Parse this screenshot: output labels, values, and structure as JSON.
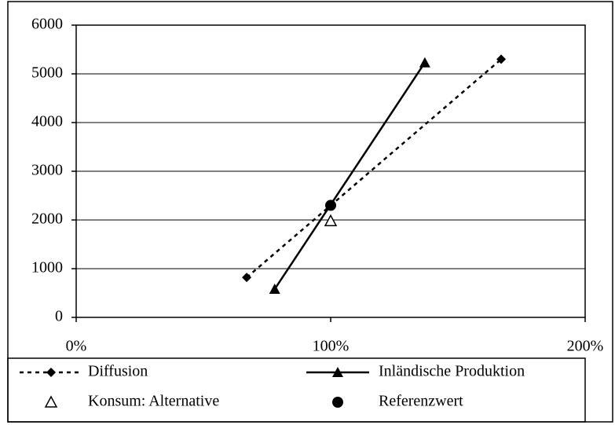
{
  "chart_data": {
    "type": "scatter",
    "xlim": [
      0,
      200
    ],
    "xticks": [
      {
        "value": 0,
        "label": "0%"
      },
      {
        "value": 100,
        "label": "100%"
      },
      {
        "value": 200,
        "label": "200%"
      }
    ],
    "ylim": [
      0,
      6000
    ],
    "yticks": [
      0,
      1000,
      2000,
      3000,
      4000,
      5000,
      6000
    ],
    "grid": true,
    "legend": "bottom",
    "series": [
      {
        "name": "Diffusion",
        "color": "#000000",
        "line": "dashed",
        "marker": "diamond",
        "x": [
          67,
          167
        ],
        "values": [
          820,
          5300
        ]
      },
      {
        "name": "Inländische Produktion",
        "color": "#000000",
        "line": "solid",
        "marker": "triangle",
        "x": [
          78,
          137
        ],
        "values": [
          580,
          5230
        ]
      },
      {
        "name": "Konsum: Alternative",
        "color": "#000000",
        "line": "none",
        "marker": "triangle-open",
        "x": [
          100
        ],
        "values": [
          1980
        ]
      },
      {
        "name": "Referenzwert",
        "color": "#000000",
        "line": "none",
        "marker": "circle",
        "x": [
          100
        ],
        "values": [
          2300
        ]
      }
    ]
  }
}
